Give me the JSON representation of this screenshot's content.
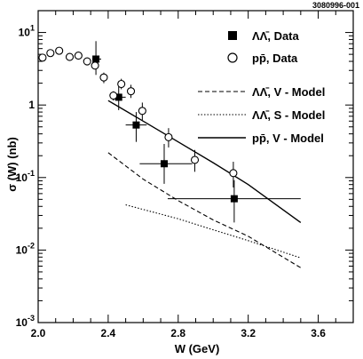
{
  "figure_id": "3080996-001",
  "chart_data": {
    "type": "scatter",
    "xlabel": "W (GeV)",
    "ylabel": "σ (W) (nb)",
    "xlim": [
      2.0,
      3.8
    ],
    "ylim": [
      0.001,
      20
    ],
    "yscale": "log",
    "x_ticks": [
      2.0,
      2.4,
      2.8,
      3.2,
      3.6
    ],
    "x_tick_labels": [
      "2.0",
      "2.4",
      "2.8",
      "3.2",
      "3.6"
    ],
    "y_ticks": [
      0.001,
      0.01,
      0.1,
      1,
      10
    ],
    "y_tick_labels": [
      {
        "base": "10",
        "exp": "-3"
      },
      {
        "base": "10",
        "exp": "-2"
      },
      {
        "base": "10",
        "exp": "-1"
      },
      {
        "base": "1",
        "exp": ""
      },
      {
        "base": "10",
        "exp": "1"
      }
    ],
    "grid": false,
    "legend_position": "top-right",
    "series": [
      {
        "name": "ΛΛ̄, Data",
        "kind": "points",
        "marker": "filled-square",
        "points": [
          {
            "x": 2.33,
            "y": 4.3,
            "xlo": 2.31,
            "xhi": 2.36,
            "ylo": 2.6,
            "yhi": 7.6
          },
          {
            "x": 2.46,
            "y": 1.28,
            "xlo": 2.42,
            "xhi": 2.5,
            "ylo": 0.85,
            "yhi": 1.8
          },
          {
            "x": 2.56,
            "y": 0.53,
            "xlo": 2.5,
            "xhi": 2.62,
            "ylo": 0.31,
            "yhi": 0.8
          },
          {
            "x": 2.72,
            "y": 0.155,
            "xlo": 2.58,
            "xhi": 2.88,
            "ylo": 0.082,
            "yhi": 0.29
          },
          {
            "x": 3.12,
            "y": 0.051,
            "xlo": 2.74,
            "xhi": 3.5,
            "ylo": 0.024,
            "yhi": 0.092
          }
        ]
      },
      {
        "name": "pp̄, Data",
        "kind": "points",
        "marker": "open-circle",
        "points": [
          {
            "x": 2.025,
            "y": 4.5
          },
          {
            "x": 2.07,
            "y": 5.2
          },
          {
            "x": 2.12,
            "y": 5.6
          },
          {
            "x": 2.18,
            "y": 4.6
          },
          {
            "x": 2.23,
            "y": 4.8
          },
          {
            "x": 2.28,
            "y": 4.0
          },
          {
            "x": 2.325,
            "y": 3.5
          },
          {
            "x": 2.375,
            "y": 2.4,
            "ylo": 2.0,
            "yhi": 2.8
          },
          {
            "x": 2.43,
            "y": 1.35,
            "ylo": 1.15,
            "yhi": 1.55
          },
          {
            "x": 2.475,
            "y": 1.95,
            "ylo": 1.65,
            "yhi": 2.3
          },
          {
            "x": 2.53,
            "y": 1.55,
            "ylo": 1.25,
            "yhi": 1.9
          },
          {
            "x": 2.595,
            "y": 0.83,
            "ylo": 0.62,
            "yhi": 1.08
          },
          {
            "x": 2.745,
            "y": 0.36,
            "ylo": 0.26,
            "yhi": 0.48
          },
          {
            "x": 2.895,
            "y": 0.175,
            "ylo": 0.12,
            "yhi": 0.24
          },
          {
            "x": 3.115,
            "y": 0.115,
            "ylo": 0.073,
            "yhi": 0.165
          }
        ]
      },
      {
        "name": "ΛΛ̄, V - Model",
        "kind": "line",
        "style": "dashed",
        "points": [
          {
            "x": 2.4,
            "y": 0.22
          },
          {
            "x": 2.6,
            "y": 0.095
          },
          {
            "x": 2.8,
            "y": 0.048
          },
          {
            "x": 3.0,
            "y": 0.026
          },
          {
            "x": 3.2,
            "y": 0.0155
          },
          {
            "x": 3.5,
            "y": 0.0057
          }
        ]
      },
      {
        "name": "ΛΛ̄, S - Model",
        "kind": "line",
        "style": "dotted",
        "points": [
          {
            "x": 2.5,
            "y": 0.042
          },
          {
            "x": 2.8,
            "y": 0.027
          },
          {
            "x": 3.0,
            "y": 0.019
          },
          {
            "x": 3.2,
            "y": 0.0135
          },
          {
            "x": 3.5,
            "y": 0.0078
          }
        ]
      },
      {
        "name": "pp̄, V - Model",
        "kind": "line",
        "style": "solid",
        "points": [
          {
            "x": 2.4,
            "y": 1.15
          },
          {
            "x": 2.6,
            "y": 0.6
          },
          {
            "x": 2.8,
            "y": 0.31
          },
          {
            "x": 3.0,
            "y": 0.16
          },
          {
            "x": 3.2,
            "y": 0.08
          },
          {
            "x": 3.5,
            "y": 0.024
          }
        ]
      }
    ]
  }
}
